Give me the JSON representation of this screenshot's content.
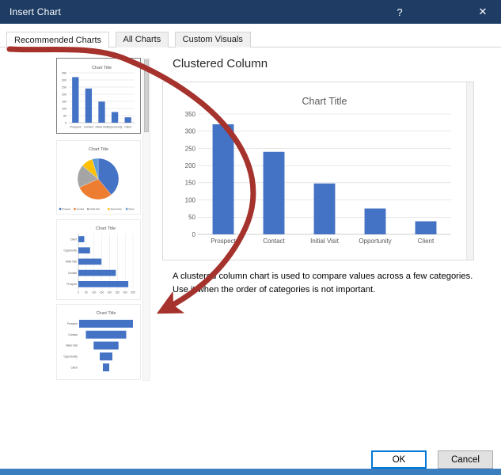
{
  "window": {
    "title": "Insert Chart",
    "help_label": "?",
    "close_label": "✕"
  },
  "tabs": {
    "items": [
      {
        "label": "Recommended Charts",
        "active": true
      },
      {
        "label": "All Charts",
        "active": false
      },
      {
        "label": "Custom Visuals",
        "active": false
      }
    ]
  },
  "selected_chart": {
    "heading": "Clustered Column",
    "description_lines": [
      "A clustered column chart is used to compare values across a few categories.",
      "Use it when the order of categories is not important."
    ]
  },
  "footer": {
    "ok_label": "OK",
    "cancel_label": "Cancel"
  },
  "colors": {
    "title_bar": "#1e3c64",
    "bar_fill": "#4472c4",
    "pie_palette": [
      "#4472c4",
      "#ed7d31",
      "#a5a5a5",
      "#ffc000",
      "#5b9bd5"
    ],
    "bottom_strip": "#3a7ebf",
    "focus_border": "#0078d7"
  },
  "annotation": {
    "shape": "curved-arrow",
    "color": "#a5322c"
  },
  "chart_data": [
    {
      "id": "preview",
      "type": "bar",
      "title": "Chart Title",
      "categories": [
        "Prospect",
        "Contact",
        "Initial Visit",
        "Opportunity",
        "Client"
      ],
      "values": [
        320,
        240,
        148,
        75,
        38
      ],
      "ylim": [
        0,
        350
      ],
      "ytick_step": 50,
      "grid": true,
      "legend_position": "none"
    },
    {
      "id": "thumb-column",
      "type": "bar",
      "title": "Chart Title",
      "categories": [
        "Prospect",
        "Contact",
        "Initial Visit",
        "Opportunity",
        "Client"
      ],
      "values": [
        320,
        240,
        148,
        75,
        38
      ],
      "ylim": [
        0,
        350
      ],
      "ytick_step": 50,
      "grid": true
    },
    {
      "id": "thumb-pie",
      "type": "pie",
      "title": "Chart Title",
      "categories": [
        "Prospect",
        "Contact",
        "Initial Visit",
        "Opportunity",
        "Client"
      ],
      "values": [
        320,
        240,
        148,
        75,
        38
      ],
      "legend_position": "bottom"
    },
    {
      "id": "thumb-bar-horizontal",
      "type": "bar-horizontal",
      "title": "Chart Title",
      "categories": [
        "Prospect",
        "Contact",
        "Initial Visit",
        "Opportunity",
        "Client"
      ],
      "values": [
        320,
        240,
        148,
        75,
        38
      ],
      "xlim": [
        0,
        350
      ],
      "xtick_step": 50,
      "grid": true
    },
    {
      "id": "thumb-funnel",
      "type": "funnel",
      "title": "Chart Title",
      "categories": [
        "Prospect",
        "Contact",
        "Initial Visit",
        "Opportunity",
        "Client"
      ],
      "values": [
        320,
        240,
        148,
        75,
        38
      ]
    }
  ]
}
